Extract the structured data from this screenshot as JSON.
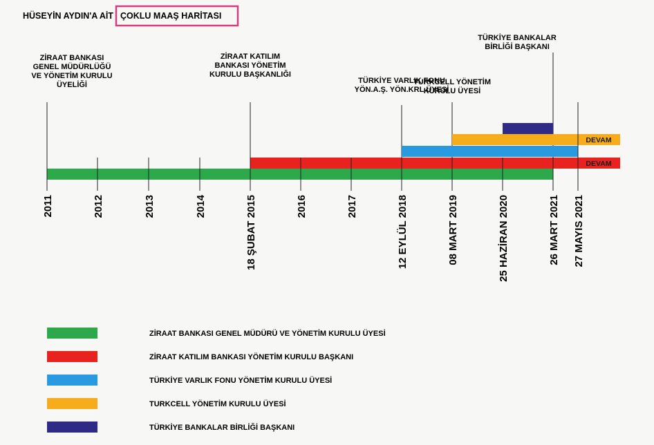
{
  "title": {
    "prefix": "HÜSEYİN AYDIN'A AİT",
    "highlighted": "ÇOKLU MAAŞ HARİTASI",
    "highlight_color": "#d63b7d"
  },
  "colors": {
    "green": "#2da84a",
    "red": "#e8231f",
    "blue": "#2a9ae0",
    "orange": "#f7ad1b",
    "navy": "#2e2a86"
  },
  "timeline": {
    "ticks": [
      "2011",
      "2012",
      "2013",
      "2014",
      "18 ŞUBAT 2015",
      "2016",
      "2017",
      "12 EYLÜL 2018",
      "08 MART 2019",
      "25 HAZİRAN 2020",
      "26 MART 2021",
      "27 MAYIS 2021"
    ],
    "bars": [
      {
        "id": "green",
        "start": 0,
        "end": 10,
        "color": "green"
      },
      {
        "id": "red",
        "start": 4,
        "end": 12,
        "color": "red",
        "label": "DEVAM"
      },
      {
        "id": "blue",
        "start": 7,
        "end": 11,
        "color": "blue"
      },
      {
        "id": "orange",
        "start": 8,
        "end": 12,
        "color": "orange",
        "label": "DEVAM"
      },
      {
        "id": "navy",
        "start": 9,
        "end": 10,
        "color": "navy"
      }
    ],
    "annotations": [
      {
        "tick": 0,
        "lines": [
          "ZİRAAT BANKASI",
          "GENEL MÜDÜRLÜĞÜ",
          "VE YÖNETİM KURULU",
          "ÜYELİĞİ"
        ]
      },
      {
        "tick": 4,
        "lines": [
          "ZİRAAT KATILIM",
          "BANKASI YÖNETİM",
          "KURULU BAŞKANLIĞI"
        ]
      },
      {
        "tick": 7,
        "lines": [
          "TÜRKİYE VARLIK FONU",
          "YÖN.A.Ş. YÖN.KRL.ÜYESİ"
        ]
      },
      {
        "tick": 8,
        "lines": [
          "TURKCELL YÖNETİM",
          "KURULU ÜYESİ"
        ]
      },
      {
        "tick": 10,
        "lines": [
          "TÜRKİYE BANKALAR",
          "BİRLİĞİ BAŞKANI"
        ]
      }
    ]
  },
  "legend": [
    {
      "color": "green",
      "label": "ZİRAAT BANKASI GENEL MÜDÜRÜ VE YÖNETİM KURULU ÜYESİ"
    },
    {
      "color": "red",
      "label": "ZİRAAT KATILIM BANKASI YÖNETİM KURULU BAŞKANI"
    },
    {
      "color": "blue",
      "label": "TÜRKİYE VARLIK FONU YÖNETİM KURULU ÜYESİ"
    },
    {
      "color": "orange",
      "label": "TURKCELL YÖNETİM KURULU ÜYESİ"
    },
    {
      "color": "navy",
      "label": "TÜRKİYE BANKALAR BİRLİĞİ BAŞKANI"
    }
  ]
}
